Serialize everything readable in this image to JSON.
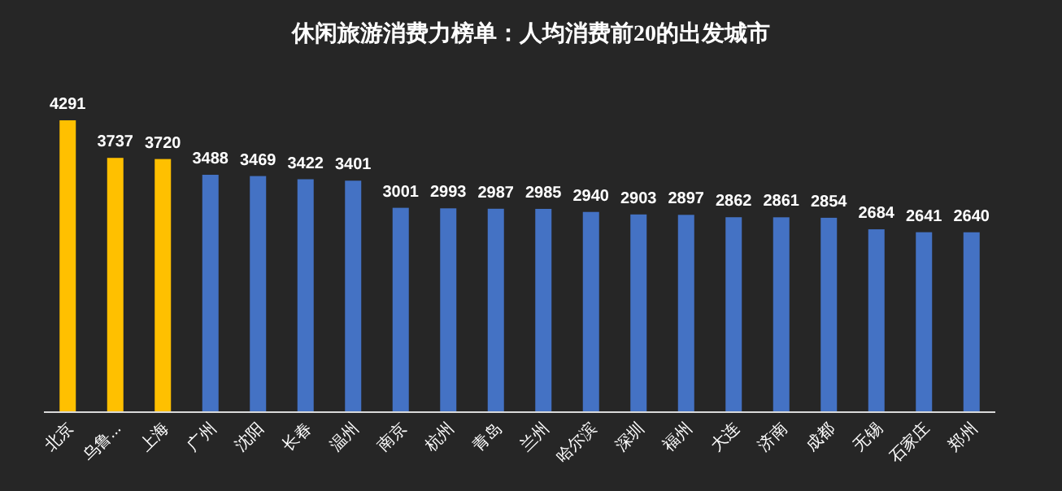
{
  "chart_data": {
    "type": "bar",
    "title": "休闲旅游消费力榜单：人均消费前20的出发城市",
    "categories": [
      "北京",
      "乌鲁...",
      "上海",
      "广州",
      "沈阳",
      "长春",
      "温州",
      "南京",
      "杭州",
      "青岛",
      "兰州",
      "哈尔滨",
      "深圳",
      "福州",
      "大连",
      "济南",
      "成都",
      "无锡",
      "石家庄",
      "郑州"
    ],
    "values": [
      4291,
      3737,
      3720,
      3488,
      3469,
      3422,
      3401,
      3001,
      2993,
      2987,
      2985,
      2940,
      2903,
      2897,
      2862,
      2861,
      2854,
      2684,
      2641,
      2640
    ],
    "colors": [
      "#ffc000",
      "#ffc000",
      "#ffc000",
      "#4472c4",
      "#4472c4",
      "#4472c4",
      "#4472c4",
      "#4472c4",
      "#4472c4",
      "#4472c4",
      "#4472c4",
      "#4472c4",
      "#4472c4",
      "#4472c4",
      "#4472c4",
      "#4472c4",
      "#4472c4",
      "#4472c4",
      "#4472c4",
      "#4472c4"
    ],
    "data_labels": true
  }
}
